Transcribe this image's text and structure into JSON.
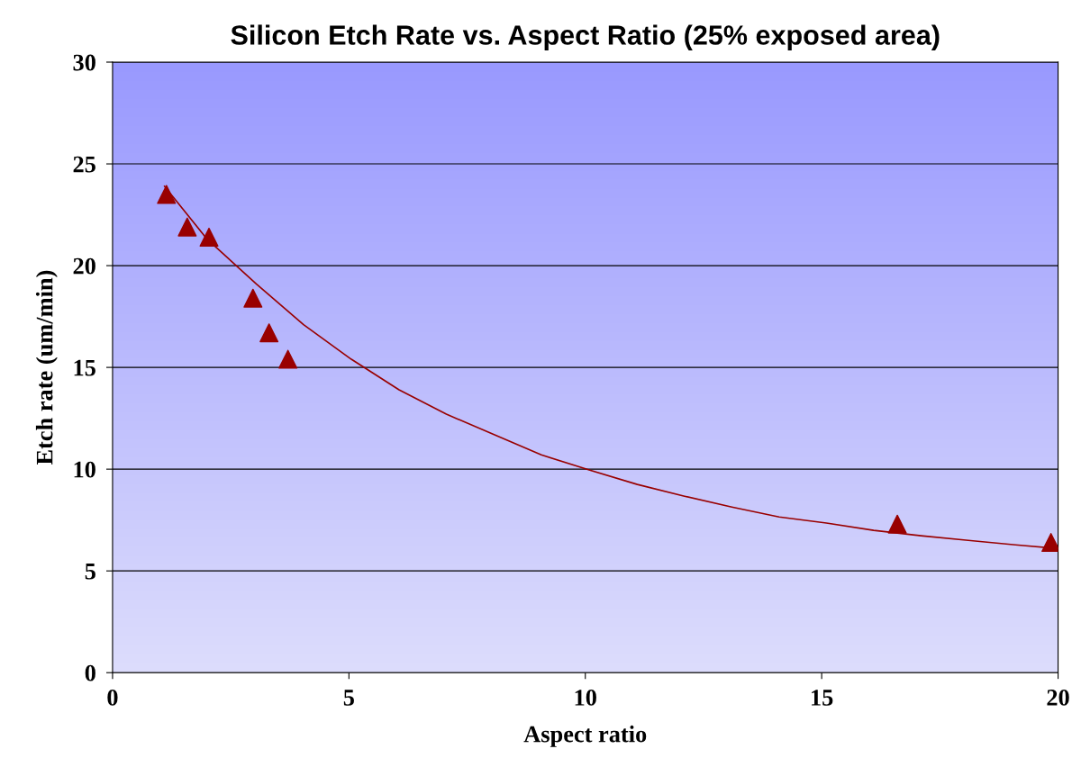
{
  "chart_data": {
    "type": "scatter",
    "title": "Silicon Etch Rate vs. Aspect Ratio (25% exposed area)",
    "xlabel": "Aspect ratio",
    "ylabel": "Etch rate (um/min)",
    "xlim": [
      0,
      20
    ],
    "xticks": [
      0,
      5,
      10,
      15,
      20
    ],
    "ylim": [
      0,
      30
    ],
    "yticks": [
      0,
      5,
      10,
      15,
      20,
      25,
      30
    ],
    "grid": "y",
    "marker": "triangle",
    "series": [
      {
        "color": "#990000",
        "x": [
          1.14,
          1.58,
          2.04,
          2.97,
          3.31,
          3.71,
          16.6,
          19.85
        ],
        "values": [
          23.5,
          21.9,
          21.4,
          18.4,
          16.7,
          15.4,
          7.3,
          6.4
        ]
      },
      {
        "type": "line",
        "color": "#990000",
        "marker": "none",
        "x": [
          1.1,
          2.0,
          3.04,
          4.04,
          5.05,
          6.06,
          7.06,
          8.07,
          9.07,
          10.08,
          11.1,
          12.1,
          13.1,
          14.1,
          15.1,
          16.1,
          17.1,
          18.1,
          19.1,
          20.0
        ],
        "values": [
          23.9,
          21.3,
          19.1,
          17.1,
          15.4,
          13.9,
          12.7,
          11.7,
          10.7,
          9.96,
          9.25,
          8.67,
          8.14,
          7.65,
          7.35,
          6.99,
          6.73,
          6.5,
          6.28,
          6.1
        ]
      }
    ]
  }
}
